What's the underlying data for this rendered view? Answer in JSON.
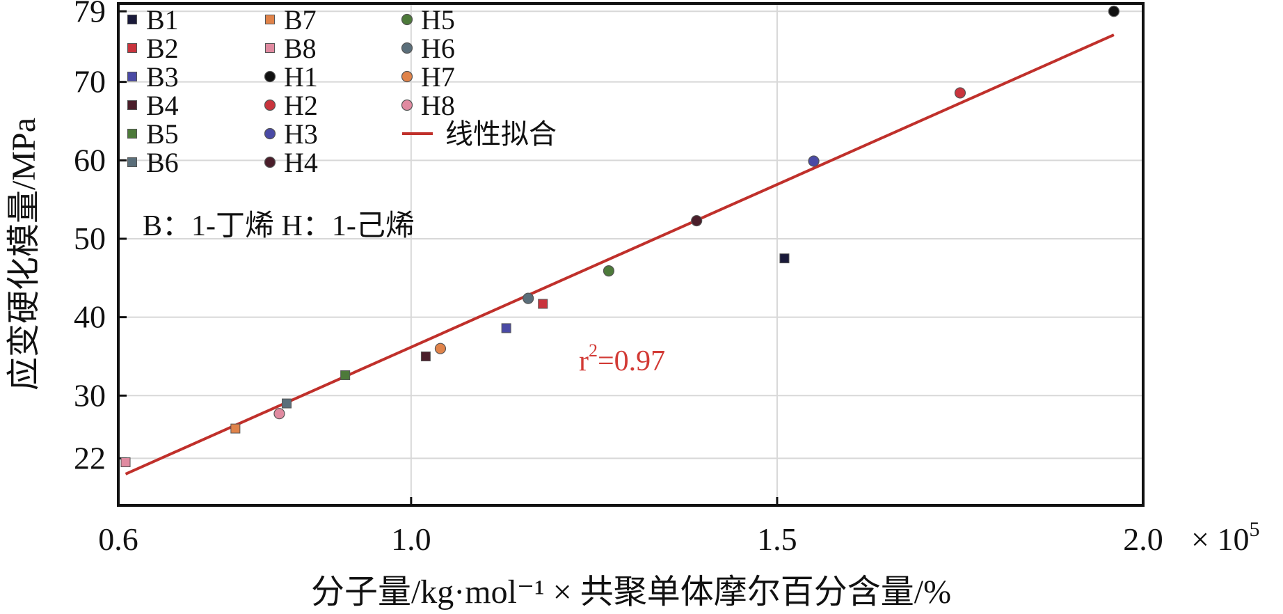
{
  "chart_data": {
    "type": "scatter",
    "xlabel": "分子量/kg·mol⁻¹ × 共聚单体摩尔百分含量/%",
    "ylabel": "应变硬化模量/MPa",
    "x_multiplier": "× 10",
    "x_multiplier_exp": "5",
    "xlim": [
      0.6,
      2.0
    ],
    "ylim": [
      16,
      80
    ],
    "x_ticks": [
      {
        "value": 0.6,
        "label": "0.6"
      },
      {
        "value": 1.0,
        "label": "1.0"
      },
      {
        "value": 1.5,
        "label": "1.5"
      },
      {
        "value": 2.0,
        "label": "2.0"
      }
    ],
    "y_ticks": [
      {
        "value": 22,
        "label": "22"
      },
      {
        "value": 30,
        "label": "30"
      },
      {
        "value": 40,
        "label": "40"
      },
      {
        "value": 50,
        "label": "50"
      },
      {
        "value": 60,
        "label": "60"
      },
      {
        "value": 70,
        "label": "70"
      },
      {
        "value": 79,
        "label": "79"
      }
    ],
    "x_gridlines": [
      1.0,
      1.5
    ],
    "grid": true,
    "legend_position": "top-left",
    "series": [
      {
        "name": "B1",
        "marker": "square",
        "color": "#1a1a3a",
        "x": 1.51,
        "y": 47.5
      },
      {
        "name": "B2",
        "marker": "square",
        "color": "#c9343d",
        "x": 1.18,
        "y": 41.7
      },
      {
        "name": "B3",
        "marker": "square",
        "color": "#4a4aa5",
        "x": 1.13,
        "y": 38.6
      },
      {
        "name": "B4",
        "marker": "square",
        "color": "#4a1e2a",
        "x": 1.02,
        "y": 35.0
      },
      {
        "name": "B5",
        "marker": "square",
        "color": "#4d7a3a",
        "x": 0.91,
        "y": 32.6
      },
      {
        "name": "B6",
        "marker": "square",
        "color": "#5a6e7a",
        "x": 0.83,
        "y": 29.0
      },
      {
        "name": "B7",
        "marker": "square",
        "color": "#e0834a",
        "x": 0.76,
        "y": 25.8
      },
      {
        "name": "B8",
        "marker": "square",
        "color": "#e08aa0",
        "x": 0.61,
        "y": 21.5
      },
      {
        "name": "H1",
        "marker": "circle",
        "color": "#111111",
        "x": 1.96,
        "y": 79.0
      },
      {
        "name": "H2",
        "marker": "circle",
        "color": "#c9343d",
        "x": 1.75,
        "y": 68.6
      },
      {
        "name": "H3",
        "marker": "circle",
        "color": "#4a4aa5",
        "x": 1.55,
        "y": 59.9
      },
      {
        "name": "H4",
        "marker": "circle",
        "color": "#4a1e2a",
        "x": 1.39,
        "y": 52.3
      },
      {
        "name": "H5",
        "marker": "circle",
        "color": "#4d7a3a",
        "x": 1.27,
        "y": 45.9
      },
      {
        "name": "H6",
        "marker": "circle",
        "color": "#5a6e7a",
        "x": 1.16,
        "y": 42.4
      },
      {
        "name": "H7",
        "marker": "circle",
        "color": "#e0834a",
        "x": 1.04,
        "y": 36.0
      },
      {
        "name": "H8",
        "marker": "circle",
        "color": "#e08aa0",
        "x": 0.82,
        "y": 27.7
      }
    ],
    "fit": {
      "name": "线性拟合",
      "color": "#c0302b",
      "x": [
        0.61,
        1.96
      ],
      "y": [
        20.0,
        76.0
      ]
    },
    "annotations": {
      "note": "B：1-丁烯   H：1-己烯",
      "r2_prefix": "r",
      "r2_exp": "2",
      "r2_value": "=0.97"
    }
  }
}
